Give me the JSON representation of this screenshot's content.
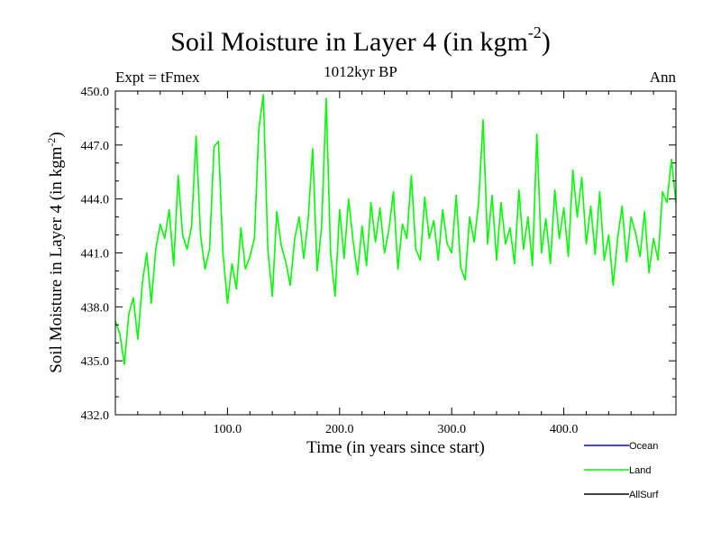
{
  "chart_data": {
    "type": "line",
    "title_main": "Soil Moisture in Layer 4 (in kgm",
    "title_sup": "-2",
    "title_end": ")",
    "subtitle_left": "Expt = tFmex",
    "subtitle_center": "1012kyr BP",
    "subtitle_right": "Ann",
    "xlabel": "Time (in years since start)",
    "ylabel": "Soil Moisture in Layer 4 (in kgm",
    "ylabel_sup": "-2",
    "ylabel_end": ")",
    "xlim": [
      0,
      500
    ],
    "ylim": [
      432.0,
      450.0
    ],
    "xticks": [
      100,
      200,
      300,
      400
    ],
    "xtick_labels": [
      "100.0",
      "200.0",
      "300.0",
      "400.0"
    ],
    "yticks": [
      432,
      435,
      438,
      441,
      444,
      447,
      450
    ],
    "ytick_labels": [
      "432.0",
      "435.0",
      "438.0",
      "441.0",
      "444.0",
      "447.0",
      "450.0"
    ],
    "legend": [
      {
        "name": "Ocean",
        "color": "#0000ff"
      },
      {
        "name": "Land",
        "color": "#00ff00"
      },
      {
        "name": "AllSurf",
        "color": "#000000"
      }
    ],
    "series": [
      {
        "name": "Land",
        "color": "#00ff00",
        "x": [
          0,
          4,
          8,
          12,
          16,
          20,
          24,
          28,
          32,
          36,
          40,
          44,
          48,
          52,
          56,
          60,
          64,
          68,
          72,
          76,
          80,
          84,
          88,
          92,
          96,
          100,
          104,
          108,
          112,
          116,
          120,
          124,
          128,
          132,
          136,
          140,
          144,
          148,
          152,
          156,
          160,
          164,
          168,
          172,
          176,
          180,
          184,
          188,
          192,
          196,
          200,
          204,
          208,
          212,
          216,
          220,
          224,
          228,
          232,
          236,
          240,
          244,
          248,
          252,
          256,
          260,
          264,
          268,
          272,
          276,
          280,
          284,
          288,
          292,
          296,
          300,
          304,
          308,
          312,
          316,
          320,
          324,
          328,
          332,
          336,
          340,
          344,
          348,
          352,
          356,
          360,
          364,
          368,
          372,
          376,
          380,
          384,
          388,
          392,
          396,
          400,
          404,
          408,
          412,
          416,
          420,
          424,
          428,
          432,
          436,
          440,
          444,
          448,
          452,
          456,
          460,
          464,
          468,
          472,
          476,
          480,
          484,
          488,
          492,
          496,
          500
        ],
        "values": [
          437.2,
          436.5,
          434.8,
          437.6,
          438.5,
          436.2,
          439.3,
          441.0,
          438.2,
          441.2,
          442.6,
          441.8,
          443.4,
          440.3,
          445.3,
          442.0,
          441.2,
          442.5,
          447.5,
          442.0,
          440.1,
          441.2,
          446.9,
          447.2,
          441.0,
          438.2,
          440.4,
          439.0,
          442.4,
          440.1,
          440.8,
          441.8,
          447.9,
          449.8,
          441.2,
          438.6,
          443.3,
          441.4,
          440.5,
          439.2,
          441.8,
          443.0,
          440.7,
          442.9,
          446.8,
          440.0,
          442.5,
          449.6,
          441.0,
          438.6,
          443.4,
          440.7,
          444.0,
          441.7,
          439.8,
          442.5,
          440.3,
          443.8,
          441.6,
          443.5,
          441.0,
          442.3,
          444.4,
          440.1,
          442.6,
          441.8,
          445.3,
          441.2,
          440.6,
          444.1,
          441.8,
          442.8,
          440.6,
          443.4,
          441.5,
          441.0,
          444.2,
          440.2,
          439.5,
          443.0,
          441.6,
          443.8,
          448.4,
          441.5,
          444.2,
          440.6,
          443.8,
          441.5,
          442.4,
          440.4,
          444.5,
          441.2,
          443.0,
          440.3,
          447.6,
          441.0,
          442.9,
          440.4,
          444.5,
          441.8,
          443.5,
          440.8,
          445.6,
          443.0,
          445.2,
          441.5,
          443.6,
          440.9,
          444.4,
          440.6,
          442.0,
          439.2,
          441.8,
          443.6,
          440.5,
          443.0,
          442.1,
          440.8,
          443.3,
          439.9,
          441.8,
          440.6,
          444.4,
          443.8,
          446.2,
          443.8
        ]
      }
    ]
  }
}
